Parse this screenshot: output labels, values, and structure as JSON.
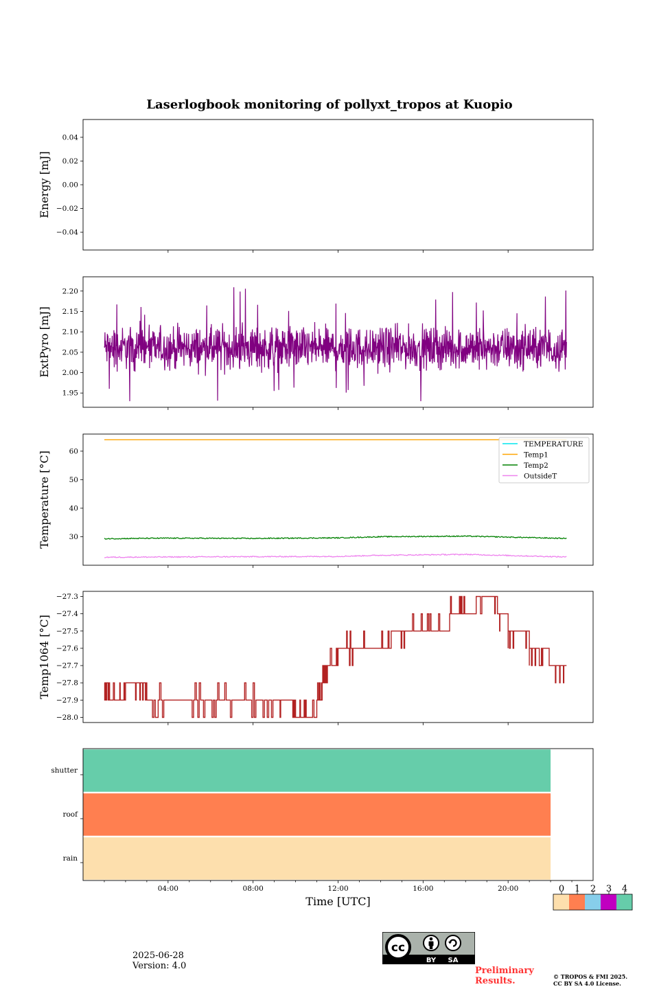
{
  "title": "Laserlogbook monitoring of pollyxt_tropos at Kuopio",
  "date": "2025-06-28",
  "version": "Version: 4.0",
  "prelim_line1": "Preliminary",
  "prelim_line2": "Results.",
  "copyright_line1": "© TROPOS & FMI 2025.",
  "copyright_line2": "CC BY SA 4.0 License.",
  "license_badge": {
    "by": "BY",
    "sa": "SA",
    "cc": "cc"
  },
  "xlabel": "Time [UTC]",
  "x_ticks": [
    "04:00",
    "08:00",
    "12:00",
    "16:00",
    "20:00"
  ],
  "chart_data": [
    {
      "type": "line",
      "ylabel": "Energy [mJ]",
      "ylim": [
        -0.055,
        0.055
      ],
      "yticks": [
        "0.04",
        "0.02",
        "0.00",
        "−0.02",
        "−0.04"
      ],
      "series": []
    },
    {
      "type": "line",
      "ylabel": "ExtPyro [mJ]",
      "ylim": [
        1.915,
        2.235
      ],
      "yticks": [
        "2.20",
        "2.15",
        "2.10",
        "2.05",
        "2.00",
        "1.95"
      ],
      "x_range": [
        "01:00",
        "22:45"
      ],
      "color": "#800080",
      "series": [
        {
          "mean": 2.06,
          "min": 1.93,
          "max": 2.23
        }
      ]
    },
    {
      "type": "line",
      "ylabel": "Temperature [°C]",
      "ylim": [
        20,
        66
      ],
      "yticks": [
        "60",
        "50",
        "40",
        "30"
      ],
      "legend_position": "top-right",
      "series": [
        {
          "name": "TEMPERATURE",
          "color": "#00e5ee",
          "values": []
        },
        {
          "name": "Temp1",
          "color": "#ffa500",
          "x": [
            "01:00",
            "22:45"
          ],
          "values": [
            64,
            64
          ]
        },
        {
          "name": "Temp2",
          "color": "#008000",
          "x": [
            "01:00",
            "04:00",
            "08:00",
            "12:00",
            "14:00",
            "18:00",
            "22:45"
          ],
          "values": [
            29.3,
            29.5,
            29.4,
            29.6,
            30.0,
            30.2,
            29.4
          ]
        },
        {
          "name": "OutsideT",
          "color": "#ee82ee",
          "x": [
            "01:00",
            "04:00",
            "08:00",
            "12:00",
            "14:00",
            "18:00",
            "22:45"
          ],
          "values": [
            22.8,
            22.9,
            23.0,
            23.1,
            23.5,
            23.8,
            22.9
          ]
        }
      ]
    },
    {
      "type": "line",
      "ylabel": "Temp1064 [°C]",
      "ylim": [
        -28.03,
        -27.27
      ],
      "yticks": [
        "−27.3",
        "−27.4",
        "−27.5",
        "−27.6",
        "−27.7",
        "−27.8",
        "−27.9",
        "−28.0"
      ],
      "color": "#b22222",
      "series": [
        {
          "x": [
            "01:00",
            "01:15",
            "02:00",
            "03:00",
            "05:00",
            "07:00",
            "09:00",
            "10:00",
            "11:00",
            "11:15",
            "11:30",
            "12:00",
            "13:00",
            "14:30",
            "15:30",
            "17:15",
            "18:30",
            "19:30",
            "20:00",
            "21:00",
            "22:00",
            "22:45"
          ],
          "values": [
            -27.8,
            -27.9,
            -27.8,
            -27.9,
            -27.9,
            -27.9,
            -27.9,
            -28.0,
            -27.9,
            -27.8,
            -27.7,
            -27.6,
            -27.6,
            -27.5,
            -27.5,
            -27.4,
            -27.3,
            -27.4,
            -27.5,
            -27.6,
            -27.7,
            -27.8
          ]
        }
      ]
    },
    {
      "type": "heatmap",
      "rows": [
        "shutter",
        "roof",
        "rain"
      ],
      "x_range": [
        "00:00",
        "22:00"
      ],
      "row_values": [
        4,
        1,
        0
      ],
      "colorbar": {
        "ticks": [
          "0",
          "1",
          "2",
          "3",
          "4"
        ],
        "colors": [
          "#fddfad",
          "#ff7f50",
          "#87ceeb",
          "#c000c0",
          "#66cdaa"
        ]
      }
    }
  ]
}
